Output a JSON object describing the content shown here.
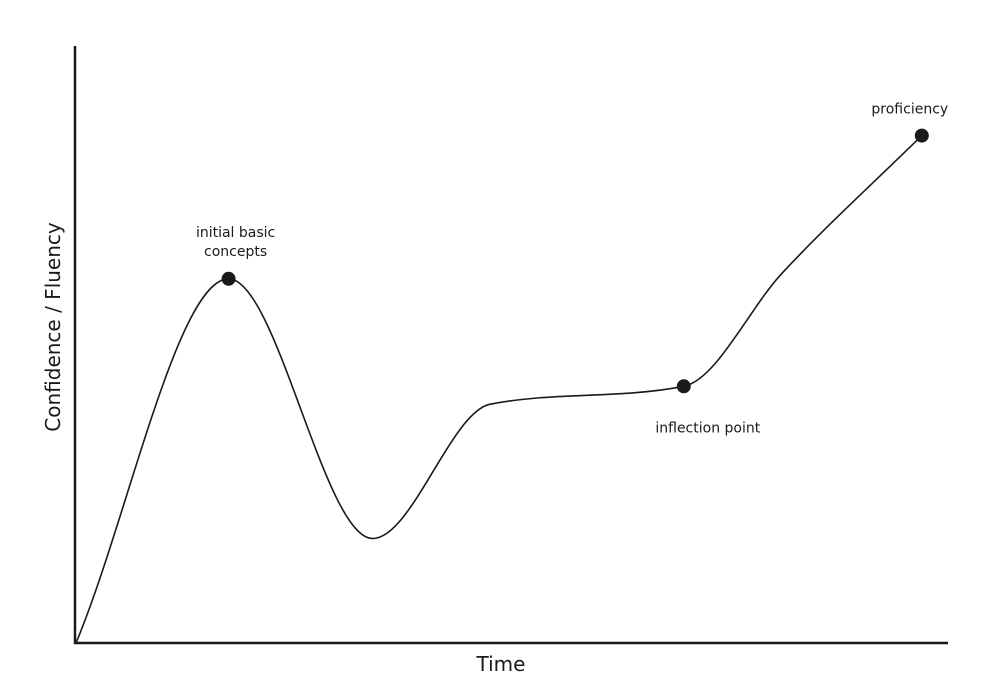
{
  "chart_data": {
    "type": "line",
    "title": "",
    "xlabel": "Time",
    "ylabel": "Confidence / Fluency",
    "xlim": [
      0,
      100
    ],
    "ylim": [
      0,
      100
    ],
    "grid": false,
    "line_color": "#1a1a1a",
    "point_color": "#1a1a1a",
    "series": [
      {
        "values": [
          {
            "x": 0,
            "y": 0
          },
          {
            "x": 17.5,
            "y": 61
          },
          {
            "x": 34,
            "y": 17.5
          },
          {
            "x": 47.5,
            "y": 40
          },
          {
            "x": 69.7,
            "y": 43
          },
          {
            "x": 81,
            "y": 62
          },
          {
            "x": 97,
            "y": 85
          }
        ]
      }
    ],
    "annotations": [
      {
        "id": "initial",
        "lines": [
          "initial basic",
          "concepts"
        ],
        "x": 17.5,
        "y": 61
      },
      {
        "id": "inflection",
        "lines": [
          "inflection point"
        ],
        "x": 69.7,
        "y": 43
      },
      {
        "id": "proficiency",
        "lines": [
          "proficiency"
        ],
        "x": 97,
        "y": 85
      }
    ]
  }
}
